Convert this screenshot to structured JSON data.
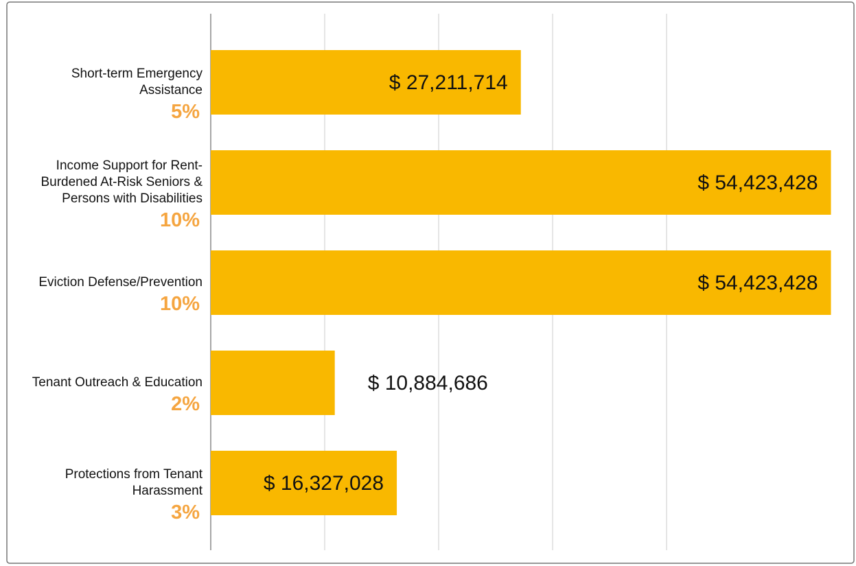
{
  "chart_data": {
    "type": "barh",
    "categories": [
      "Short-term Emergency Assistance",
      "Income Support for Rent-Burdened At-Risk Seniors & Persons with Disabilities",
      "Eviction Defense/Prevention",
      "Tenant Outreach & Education",
      "Protections from Tenant Harassment"
    ],
    "values": [
      27211714,
      54423428,
      54423428,
      10884686,
      16327028
    ],
    "value_labels": [
      "$ 27,211,714",
      "$ 54,423,428",
      "$ 54,423,428",
      "$ 10,884,686",
      "$ 16,327,028"
    ],
    "share_labels": [
      "5%",
      "10%",
      "10%",
      "2%",
      "3%"
    ],
    "color": "#f9b800",
    "share_color": "#f5a540",
    "xlim": [
      0,
      56500000
    ],
    "xticks": [
      0,
      10000000,
      20000000,
      30000000,
      40000000
    ],
    "grid": true
  }
}
